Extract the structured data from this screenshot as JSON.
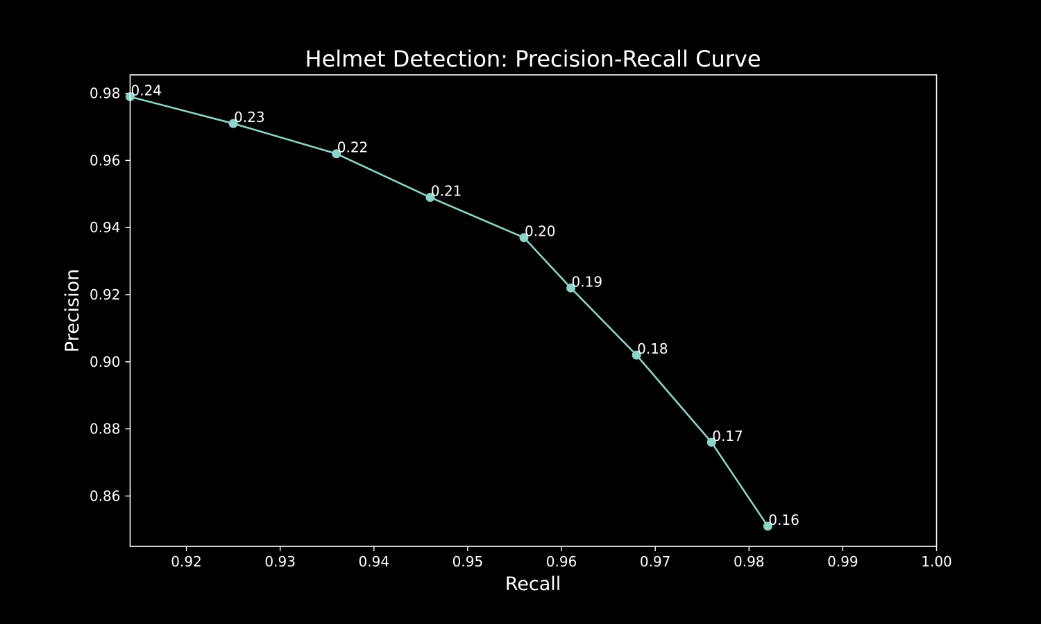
{
  "chart_data": {
    "type": "line",
    "title": "Helmet Detection: Precision-Recall Curve",
    "xlabel": "Recall",
    "ylabel": "Precision",
    "xlim": [
      0.914,
      1.0
    ],
    "ylim": [
      0.845,
      0.9855
    ],
    "xticks": [
      0.92,
      0.93,
      0.94,
      0.95,
      0.96,
      0.97,
      0.98,
      0.99,
      1.0
    ],
    "xtick_labels": [
      "0.92",
      "0.93",
      "0.94",
      "0.95",
      "0.96",
      "0.97",
      "0.98",
      "0.99",
      "1.00"
    ],
    "yticks": [
      0.86,
      0.88,
      0.9,
      0.92,
      0.94,
      0.96,
      0.98
    ],
    "ytick_labels": [
      "0.86",
      "0.88",
      "0.90",
      "0.92",
      "0.94",
      "0.96",
      "0.98"
    ],
    "grid": false,
    "series": [
      {
        "color": "#8dd3c7",
        "marker": "circle",
        "points": [
          {
            "x": 0.914,
            "y": 0.979,
            "label": "0.24"
          },
          {
            "x": 0.925,
            "y": 0.971,
            "label": "0.23"
          },
          {
            "x": 0.936,
            "y": 0.962,
            "label": "0.22"
          },
          {
            "x": 0.946,
            "y": 0.949,
            "label": "0.21"
          },
          {
            "x": 0.956,
            "y": 0.937,
            "label": "0.20"
          },
          {
            "x": 0.961,
            "y": 0.922,
            "label": "0.19"
          },
          {
            "x": 0.968,
            "y": 0.902,
            "label": "0.18"
          },
          {
            "x": 0.976,
            "y": 0.876,
            "label": "0.17"
          },
          {
            "x": 0.982,
            "y": 0.851,
            "label": "0.16"
          }
        ]
      }
    ]
  },
  "colors": {
    "background": "#000000",
    "foreground": "#ffffff",
    "series": "#8dd3c7"
  }
}
